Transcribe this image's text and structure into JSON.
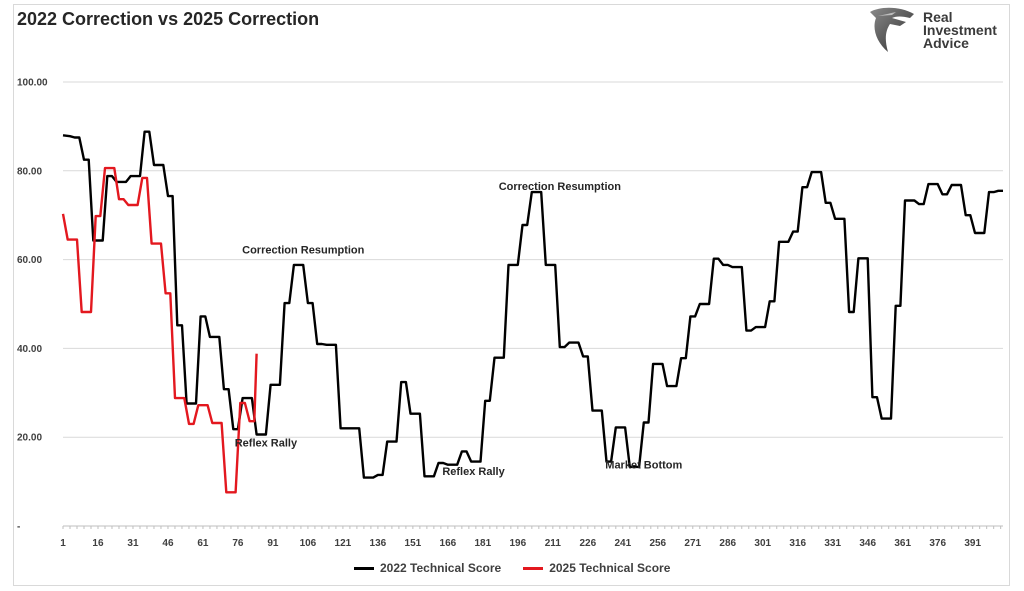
{
  "chart_data": {
    "type": "line",
    "title": "2022 Correction vs 2025 Correction",
    "ylim": [
      0,
      100
    ],
    "xlim": [
      1,
      404
    ],
    "y_ticks": [
      "-",
      "20.00",
      "40.00",
      "60.00",
      "80.00",
      "100.00"
    ],
    "x_ticks": [
      "1",
      "16",
      "31",
      "46",
      "61",
      "76",
      "91",
      "106",
      "121",
      "136",
      "151",
      "166",
      "181",
      "196",
      "211",
      "226",
      "241",
      "256",
      "271",
      "286",
      "301",
      "316",
      "331",
      "346",
      "361",
      "376",
      "391"
    ],
    "grid": "horizontal",
    "legend": "bottom",
    "series": [
      {
        "name": "2022 Technical Score",
        "color": "#000000",
        "x": [
          1,
          4,
          6,
          8,
          10,
          12,
          14,
          16,
          18,
          20,
          22,
          24,
          26,
          28,
          30,
          32,
          34,
          36,
          38,
          40,
          42,
          44,
          46,
          48,
          50,
          52,
          54,
          56,
          58,
          60,
          62,
          64,
          66,
          68,
          70,
          72,
          74,
          76,
          78,
          80,
          82,
          84,
          86,
          88,
          90,
          92,
          94,
          96,
          98,
          100,
          102,
          104,
          106,
          108,
          110,
          112,
          114,
          116,
          118,
          120,
          122,
          124,
          126,
          128,
          130,
          132,
          134,
          136,
          138,
          140,
          142,
          144,
          146,
          148,
          150,
          152,
          154,
          156,
          158,
          160,
          162,
          164,
          166,
          168,
          170,
          172,
          174,
          176,
          178,
          180,
          182,
          184,
          186,
          188,
          190,
          192,
          194,
          196,
          198,
          200,
          202,
          204,
          206,
          208,
          210,
          212,
          214,
          216,
          218,
          220,
          222,
          224,
          226,
          228,
          230,
          232,
          234,
          236,
          238,
          240,
          242,
          244,
          246,
          248,
          250,
          252,
          254,
          256,
          258,
          260,
          262,
          264,
          266,
          268,
          270,
          272,
          274,
          276,
          278,
          280,
          282,
          284,
          286,
          288,
          290,
          292,
          294,
          296,
          298,
          300,
          302,
          304,
          306,
          308,
          310,
          312,
          314,
          316,
          318,
          320,
          322,
          324,
          326,
          328,
          330,
          332,
          334,
          336,
          338,
          340,
          342,
          344,
          346,
          348,
          350,
          352,
          354,
          356,
          358,
          360,
          362,
          364,
          366,
          368,
          370,
          372,
          374,
          376,
          378,
          380,
          382,
          384,
          386,
          388,
          390,
          392,
          394,
          396,
          398,
          400,
          402,
          404
        ],
        "y": [
          88,
          87.8,
          87.5,
          87.5,
          82.5,
          82.5,
          64.3,
          64.3,
          64.3,
          78.8,
          78.8,
          77.5,
          77.5,
          77.5,
          78.8,
          78.8,
          78.8,
          88.8,
          88.8,
          81.3,
          81.3,
          81.3,
          74.3,
          74.3,
          45.2,
          45.2,
          27.6,
          27.6,
          27.6,
          47.2,
          47.2,
          42.6,
          42.6,
          42.6,
          30.8,
          30.8,
          21.8,
          21.8,
          28.8,
          28.8,
          28.8,
          20.6,
          20.6,
          20.6,
          31.8,
          31.8,
          31.8,
          50.2,
          50.2,
          58.8,
          58.8,
          58.8,
          50.2,
          50.2,
          41.0,
          41.0,
          40.8,
          40.8,
          40.8,
          22.0,
          22.0,
          22.0,
          22.0,
          22.0,
          10.9,
          10.9,
          10.9,
          11.5,
          11.5,
          19.0,
          19.0,
          19.0,
          32.4,
          32.4,
          25.3,
          25.3,
          25.3,
          11.2,
          11.2,
          11.2,
          14.2,
          14.2,
          13.8,
          13.8,
          13.8,
          16.8,
          16.8,
          14.5,
          14.5,
          14.5,
          28.2,
          28.2,
          37.9,
          37.9,
          37.9,
          58.8,
          58.8,
          58.8,
          67.8,
          67.8,
          75.2,
          75.2,
          75.2,
          58.8,
          58.8,
          58.8,
          40.3,
          40.3,
          41.3,
          41.3,
          41.3,
          38.2,
          38.2,
          26.0,
          26.0,
          26.0,
          14.5,
          14.5,
          22.2,
          22.2,
          22.2,
          13.3,
          13.3,
          13.3,
          23.3,
          23.3,
          36.5,
          36.5,
          36.5,
          31.5,
          31.5,
          31.5,
          37.8,
          37.8,
          47.2,
          47.2,
          50.0,
          50.0,
          50.0,
          60.2,
          60.2,
          58.8,
          58.8,
          58.3,
          58.3,
          58.3,
          44.0,
          44.0,
          44.8,
          44.8,
          44.8,
          50.6,
          50.6,
          64.0,
          64.0,
          64.0,
          66.3,
          66.3,
          76.3,
          76.3,
          79.7,
          79.7,
          79.7,
          72.8,
          72.8,
          69.2,
          69.2,
          69.2,
          48.2,
          48.2,
          60.3,
          60.3,
          60.3,
          29.0,
          29.0,
          24.2,
          24.2,
          24.2,
          49.6,
          49.6,
          73.3,
          73.3,
          73.3,
          72.5,
          72.5,
          77.0,
          77.0,
          77.0,
          74.7,
          74.7,
          76.8,
          76.8,
          76.8,
          70.0,
          70.0,
          66.0,
          66.0,
          66.0,
          75.2,
          75.2,
          75.5,
          75.5
        ]
      },
      {
        "name": "2025 Technical Score",
        "color": "#e3181f",
        "x": [
          1,
          3,
          5,
          7,
          9,
          11,
          13,
          15,
          17,
          19,
          21,
          23,
          25,
          27,
          29,
          31,
          33,
          35,
          37,
          39,
          41,
          43,
          45,
          47,
          49,
          51,
          53,
          55,
          57,
          59,
          61,
          63,
          65,
          67,
          69,
          71,
          73,
          75,
          77,
          79,
          81,
          83,
          84
        ],
        "y": [
          70.3,
          64.5,
          64.5,
          64.5,
          48.2,
          48.2,
          48.2,
          69.8,
          69.8,
          80.6,
          80.6,
          80.6,
          73.6,
          73.6,
          72.3,
          72.3,
          72.3,
          78.4,
          78.4,
          63.6,
          63.6,
          63.6,
          52.4,
          52.4,
          28.8,
          28.8,
          28.8,
          23.0,
          23.0,
          27.2,
          27.2,
          27.2,
          23.2,
          23.2,
          23.2,
          7.6,
          7.6,
          7.6,
          27.7,
          27.7,
          23.6,
          23.6,
          38.8
        ]
      }
    ],
    "annotations": [
      {
        "text": "Correction Resumption",
        "x": 104,
        "y": 61.4
      },
      {
        "text": "Reflex Rally",
        "x": 88,
        "y": 17.9
      },
      {
        "text": "Reflex Rally",
        "x": 177,
        "y": 11.5
      },
      {
        "text": "Correction Resumption",
        "x": 214,
        "y": 75.7
      },
      {
        "text": "Market Bottom",
        "x": 250,
        "y": 13.0
      }
    ]
  },
  "logo": {
    "line1": "Real",
    "line2": "Investment",
    "line3": "Advice",
    "icon": "eagle-head-icon"
  }
}
